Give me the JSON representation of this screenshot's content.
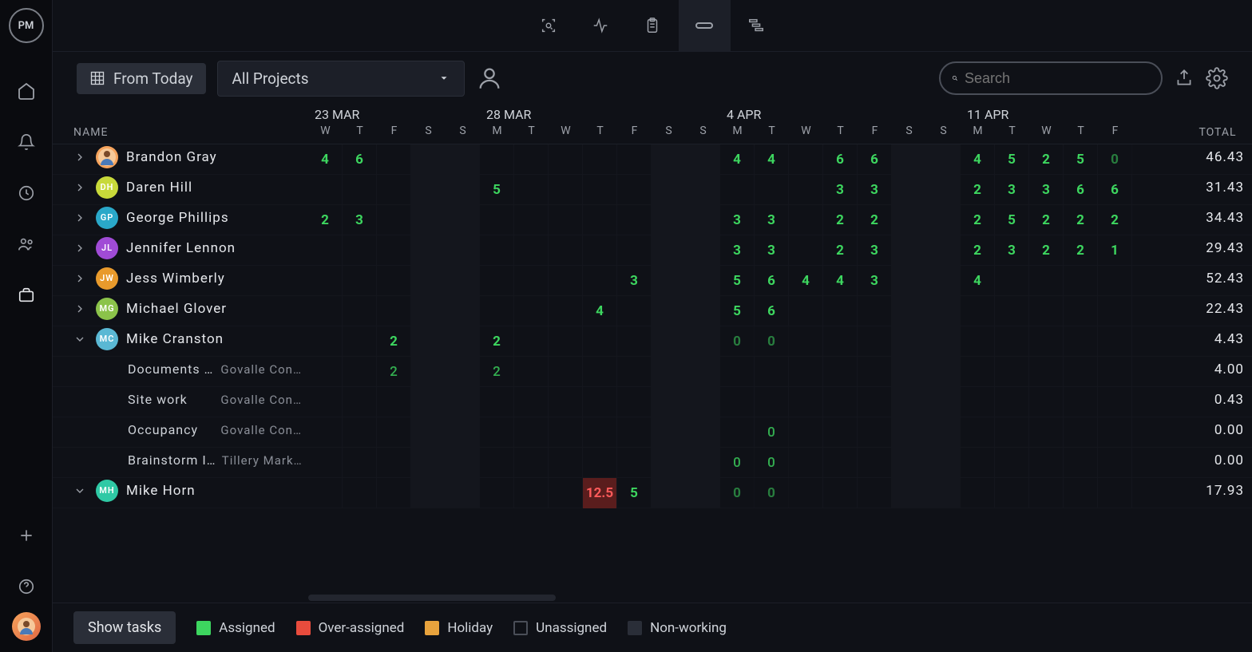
{
  "logo_text": "PM",
  "toolbar": {
    "from_today_label": "From Today",
    "project_selector": "All Projects",
    "search_placeholder": "Search"
  },
  "colors": {
    "assigned": "#3dd65f",
    "over": "#ff5a5a",
    "over_bg": "#5a1d1d",
    "holiday": "#e8a33d",
    "unassigned_border": "#4a4e58",
    "nonworking": "#2a2e38",
    "background": "#0f1117"
  },
  "headers": {
    "name": "NAME",
    "total": "TOTAL"
  },
  "date_groups": [
    {
      "label": "23 MAR",
      "days": [
        "W",
        "T",
        "F",
        "S",
        "S"
      ]
    },
    {
      "label": "28 MAR",
      "days": [
        "M",
        "T",
        "W",
        "T",
        "F",
        "S",
        "S"
      ]
    },
    {
      "label": "4 APR",
      "days": [
        "M",
        "T",
        "W",
        "T",
        "F",
        "S",
        "S"
      ]
    },
    {
      "label": "11 APR",
      "days": [
        "M",
        "T",
        "W",
        "T",
        "F"
      ]
    }
  ],
  "weekend_indices": [
    3,
    4,
    10,
    11,
    17,
    18
  ],
  "people": [
    {
      "name": "Brandon Gray",
      "avatar_color": "#f6a35c",
      "avatar_text": "",
      "avatar_emoji": true,
      "expanded": false,
      "total": "46.43",
      "cells": [
        "4",
        "6",
        "",
        "",
        "",
        "",
        "",
        "",
        "",
        "",
        "",
        "",
        "4",
        "4",
        "",
        "6",
        "6",
        "",
        "",
        "4",
        "5",
        "2",
        "5",
        "0"
      ]
    },
    {
      "name": "Daren Hill",
      "avatar_color": "#c8d93a",
      "avatar_text": "DH",
      "expanded": false,
      "total": "31.43",
      "cells": [
        "",
        "",
        "",
        "",
        "",
        "5",
        "",
        "",
        "",
        "",
        "",
        "",
        "",
        "",
        "",
        "3",
        "3",
        "",
        "",
        "2",
        "3",
        "3",
        "6",
        "6"
      ]
    },
    {
      "name": "George Phillips",
      "avatar_color": "#2aa8c9",
      "avatar_text": "GP",
      "expanded": false,
      "total": "34.43",
      "cells": [
        "2",
        "3",
        "",
        "",
        "",
        "",
        "",
        "",
        "",
        "",
        "",
        "",
        "3",
        "3",
        "",
        "2",
        "2",
        "",
        "",
        "2",
        "5",
        "2",
        "2",
        "2"
      ]
    },
    {
      "name": "Jennifer Lennon",
      "avatar_color": "#a04bd6",
      "avatar_text": "JL",
      "expanded": false,
      "total": "29.43",
      "cells": [
        "",
        "",
        "",
        "",
        "",
        "",
        "",
        "",
        "",
        "",
        "",
        "",
        "3",
        "3",
        "",
        "2",
        "3",
        "",
        "",
        "2",
        "3",
        "2",
        "2",
        "1"
      ]
    },
    {
      "name": "Jess Wimberly",
      "avatar_color": "#e89a2c",
      "avatar_text": "JW",
      "expanded": false,
      "total": "52.43",
      "cells": [
        "",
        "",
        "",
        "",
        "",
        "",
        "",
        "",
        "",
        "3",
        "",
        "",
        "5",
        "6",
        "4",
        "4",
        "3",
        "",
        "",
        "4",
        "",
        "",
        "",
        ""
      ]
    },
    {
      "name": "Michael Glover",
      "avatar_color": "#8bc34a",
      "avatar_text": "MG",
      "expanded": false,
      "total": "22.43",
      "cells": [
        "",
        "",
        "",
        "",
        "",
        "",
        "",
        "",
        "4",
        "",
        "",
        "",
        "5",
        "6",
        "",
        "",
        "",
        "",
        "",
        "",
        "",
        "",
        "",
        ""
      ]
    },
    {
      "name": "Mike Cranston",
      "avatar_color": "#5ab8d4",
      "avatar_text": "MC",
      "expanded": true,
      "total": "4.43",
      "cells": [
        "",
        "",
        "2",
        "",
        "",
        "2",
        "",
        "",
        "",
        "",
        "",
        "",
        "0",
        "0",
        "",
        "",
        "",
        "",
        "",
        "",
        "",
        "",
        "",
        ""
      ],
      "tasks": [
        {
          "name": "Documents …",
          "project": "Govalle Con…",
          "total": "4.00",
          "cells": [
            "",
            "",
            "2",
            "",
            "",
            "2",
            "",
            "",
            "",
            "",
            "",
            "",
            "",
            "",
            "",
            "",
            "",
            "",
            "",
            "",
            "",
            "",
            "",
            ""
          ]
        },
        {
          "name": "Site work",
          "project": "Govalle Con…",
          "total": "0.43",
          "cells": [
            "",
            "",
            "",
            "",
            "",
            "",
            "",
            "",
            "",
            "",
            "",
            "",
            "",
            "",
            "",
            "",
            "",
            "",
            "",
            "",
            "",
            "",
            "",
            ""
          ]
        },
        {
          "name": "Occupancy",
          "project": "Govalle Con…",
          "total": "0.00",
          "cells": [
            "",
            "",
            "",
            "",
            "",
            "",
            "",
            "",
            "",
            "",
            "",
            "",
            "",
            "0",
            "",
            "",
            "",
            "",
            "",
            "",
            "",
            "",
            "",
            ""
          ]
        },
        {
          "name": "Brainstorm I…",
          "project": "Tillery Mark…",
          "total": "0.00",
          "cells": [
            "",
            "",
            "",
            "",
            "",
            "",
            "",
            "",
            "",
            "",
            "",
            "",
            "0",
            "0",
            "",
            "",
            "",
            "",
            "",
            "",
            "",
            "",
            "",
            ""
          ]
        }
      ]
    },
    {
      "name": "Mike Horn",
      "avatar_color": "#2fc9a5",
      "avatar_text": "MH",
      "expanded": true,
      "total": "17.93",
      "cells": [
        "",
        "",
        "",
        "",
        "",
        "",
        "",
        "",
        "12.5",
        "5",
        "",
        "",
        "0",
        "0",
        "",
        "",
        "",
        "",
        "",
        "",
        "",
        "",
        "",
        ""
      ],
      "over_indices": [
        8
      ]
    }
  ],
  "footer": {
    "show_tasks": "Show tasks",
    "legend": [
      {
        "label": "Assigned",
        "color": "#3dd65f"
      },
      {
        "label": "Over-assigned",
        "color": "#e84c3d"
      },
      {
        "label": "Holiday",
        "color": "#e8a33d"
      },
      {
        "label": "Unassigned",
        "color": "transparent",
        "border": "#4a4e58"
      },
      {
        "label": "Non-working",
        "color": "#2a2e38"
      }
    ]
  }
}
